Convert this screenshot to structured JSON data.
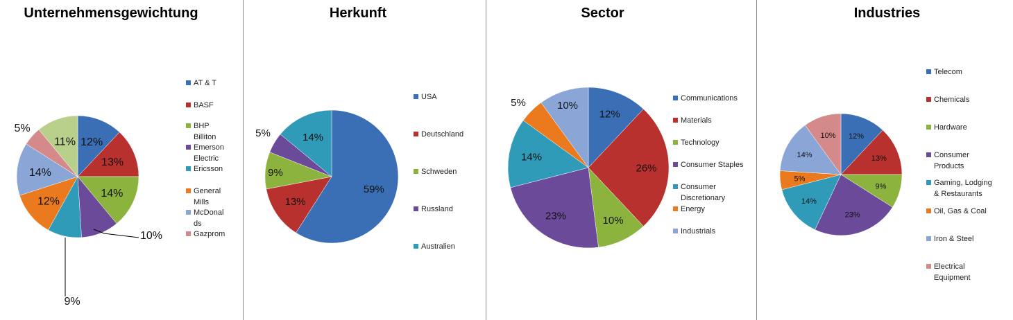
{
  "chart_data": [
    {
      "type": "pie",
      "title": "Unternehmensgewichtung",
      "categories": [
        "AT & T",
        "BASF",
        "BHP Billiton",
        "Emerson Electric",
        "Ericsson",
        "General Mills",
        "McDonalds",
        "Gazprom",
        ""
      ],
      "legend_labels": [
        "AT & T",
        "BASF",
        "BHP Billiton",
        "Emerson Electric",
        "Ericsson",
        "General Mills",
        "McDonal ds",
        "Gazprom"
      ],
      "values": [
        12,
        13,
        14,
        10,
        9,
        12,
        14,
        5,
        11
      ],
      "data_labels": [
        "12%",
        "13%",
        "14%",
        "10%",
        "9%",
        "12%",
        "14%",
        "5%",
        "11%"
      ],
      "colors": [
        "#3a6fb5",
        "#b8312f",
        "#8cb33d",
        "#6b4a9a",
        "#2f9bb8",
        "#ea7a1d",
        "#8aa6d6",
        "#d48a8a",
        "#b9d08c"
      ],
      "legend": "right"
    },
    {
      "type": "pie",
      "title": "Herkunft",
      "categories": [
        "USA",
        "Deutschland",
        "Schweden",
        "Russland",
        "Australien"
      ],
      "legend_labels": [
        "USA",
        "Deutschland",
        "Schweden",
        "Russland",
        "Australien"
      ],
      "values": [
        59,
        13,
        9,
        5,
        14
      ],
      "data_labels": [
        "59%",
        "13%",
        "9%",
        "5%",
        "14%"
      ],
      "colors": [
        "#3a6fb5",
        "#b8312f",
        "#8cb33d",
        "#6b4a9a",
        "#2f9bb8"
      ],
      "legend": "right"
    },
    {
      "type": "pie",
      "title": "Sector",
      "categories": [
        "Communications",
        "Materials",
        "Technology",
        "Consumer Staples",
        "Consumer Discretionary",
        "Energy",
        "Industrials"
      ],
      "legend_labels": [
        "Communications",
        "Materials",
        "Technology",
        "Consumer Staples",
        "Consumer Discretionary",
        "Energy",
        "Industrials"
      ],
      "values": [
        12,
        26,
        10,
        23,
        14,
        5,
        10
      ],
      "data_labels": [
        "12%",
        "26%",
        "10%",
        "23%",
        "14%",
        "5%",
        "10%"
      ],
      "colors": [
        "#3a6fb5",
        "#b8312f",
        "#8cb33d",
        "#6b4a9a",
        "#2f9bb8",
        "#ea7a1d",
        "#8aa6d6"
      ],
      "legend": "right"
    },
    {
      "type": "pie",
      "title": "Industries",
      "categories": [
        "Telecom",
        "Chemicals",
        "Hardware",
        "Consumer Products",
        "Gaming, Lodging & Restaurants",
        "Oil, Gas & Coal",
        "Iron & Steel",
        "Electrical Equipment"
      ],
      "legend_labels": [
        "Telecom",
        "Chemicals",
        "Hardware",
        "Consumer Products",
        "Gaming, Lodging & Restaurants",
        "Oil, Gas & Coal",
        "Iron & Steel",
        "Electrical Equipment"
      ],
      "values": [
        12,
        13,
        9,
        23,
        14,
        5,
        14,
        10
      ],
      "data_labels": [
        "12%",
        "13%",
        "9%",
        "23%",
        "14%",
        "5%",
        "14%",
        "10%"
      ],
      "colors": [
        "#3a6fb5",
        "#b8312f",
        "#8cb33d",
        "#6b4a9a",
        "#2f9bb8",
        "#ea7a1d",
        "#8aa6d6",
        "#d48a8a"
      ],
      "legend": "right"
    }
  ]
}
